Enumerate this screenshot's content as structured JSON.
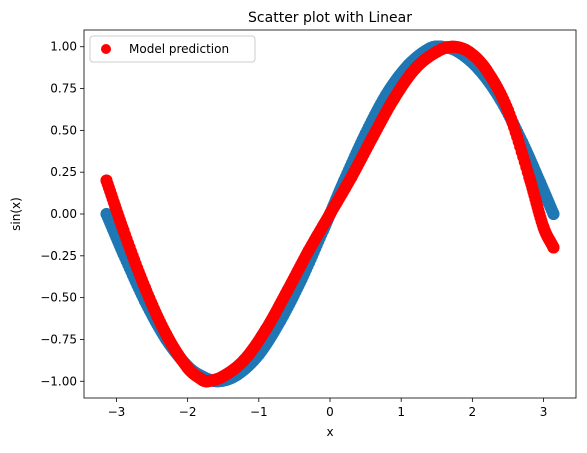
{
  "chart_data": {
    "type": "scatter",
    "title": "Scatter plot with Linear",
    "xlabel": "x",
    "ylabel": "sin(x)",
    "xlim": [
      -3.456,
      3.456
    ],
    "ylim": [
      -1.1,
      1.1
    ],
    "xticks": [
      -3,
      -2,
      -1,
      0,
      1,
      2,
      3
    ],
    "xtick_labels": [
      "−3",
      "−2",
      "−1",
      "0",
      "1",
      "2",
      "3"
    ],
    "yticks": [
      -1.0,
      -0.75,
      -0.5,
      -0.25,
      0.0,
      0.25,
      0.5,
      0.75,
      1.0
    ],
    "ytick_labels": [
      "−1.00",
      "−0.75",
      "−0.50",
      "−0.25",
      "0.00",
      "0.25",
      "0.50",
      "0.75",
      "1.00"
    ],
    "grid": false,
    "legend": {
      "position": "upper-left",
      "entries": [
        "Model prediction"
      ]
    },
    "series": [
      {
        "color": "#1f77b4",
        "x": [
          -3.14,
          -2.9,
          -2.6,
          -2.3,
          -2.0,
          -1.8,
          -1.57,
          -1.3,
          -1.0,
          -0.7,
          -0.4,
          -0.1,
          0.0,
          0.2,
          0.5,
          0.8,
          1.1,
          1.4,
          1.57,
          1.8,
          2.1,
          2.4,
          2.7,
          2.95,
          3.14
        ],
        "y": [
          0.0,
          -0.24,
          -0.52,
          -0.75,
          -0.91,
          -0.97,
          -1.0,
          -0.96,
          -0.84,
          -0.64,
          -0.39,
          -0.1,
          0.0,
          0.2,
          0.48,
          0.72,
          0.89,
          0.99,
          1.0,
          0.97,
          0.86,
          0.68,
          0.43,
          0.19,
          0.0
        ]
      },
      {
        "name": "Model prediction",
        "color": "#ff0000",
        "x": [
          -3.14,
          -2.9,
          -2.6,
          -2.3,
          -2.0,
          -1.8,
          -1.72,
          -1.5,
          -1.2,
          -0.9,
          -0.6,
          -0.3,
          0.0,
          0.3,
          0.6,
          0.9,
          1.2,
          1.5,
          1.72,
          1.95,
          2.2,
          2.5,
          2.8,
          3.0,
          3.14
        ],
        "y": [
          0.2,
          -0.1,
          -0.44,
          -0.72,
          -0.92,
          -0.99,
          -1.0,
          -0.97,
          -0.87,
          -0.69,
          -0.46,
          -0.22,
          0.0,
          0.22,
          0.46,
          0.69,
          0.87,
          0.97,
          1.0,
          0.97,
          0.86,
          0.62,
          0.22,
          -0.08,
          -0.2
        ]
      }
    ]
  }
}
